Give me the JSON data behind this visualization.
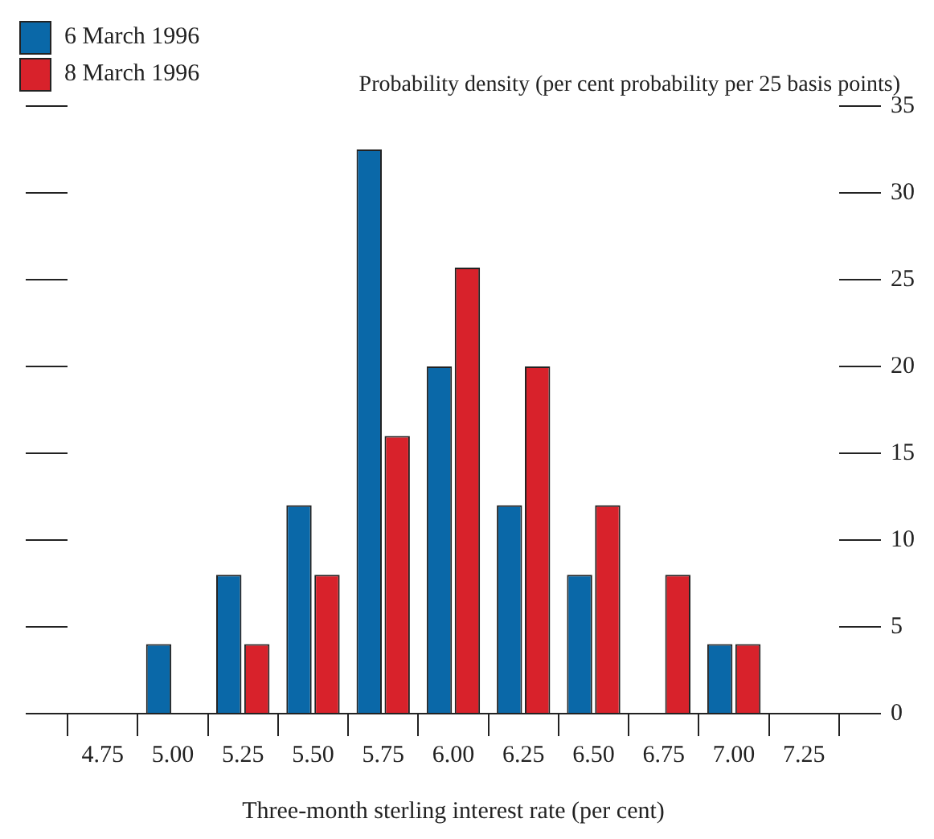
{
  "chart_data": {
    "type": "bar",
    "categories": [
      "4.75",
      "5.00",
      "5.25",
      "5.50",
      "5.75",
      "6.00",
      "6.25",
      "6.50",
      "6.75",
      "7.00",
      "7.25"
    ],
    "series": [
      {
        "name": "6 March 1996",
        "color": "#0a68a8",
        "values": [
          0,
          4,
          8,
          12,
          32.5,
          20,
          12,
          8,
          0,
          4,
          0
        ]
      },
      {
        "name": "8 March 1996",
        "color": "#d8222b",
        "values": [
          0,
          0,
          4,
          8,
          16,
          25.7,
          20,
          12,
          8,
          4,
          0
        ]
      }
    ],
    "ylim": [
      0,
      35
    ],
    "yticks": [
      0,
      5,
      10,
      15,
      20,
      25,
      30,
      35
    ],
    "ylabel": "Probability density (per cent probability per 25 basis points)",
    "xlabel": "Three-month sterling interest rate (per cent)",
    "legend": "top left",
    "grid": false
  }
}
